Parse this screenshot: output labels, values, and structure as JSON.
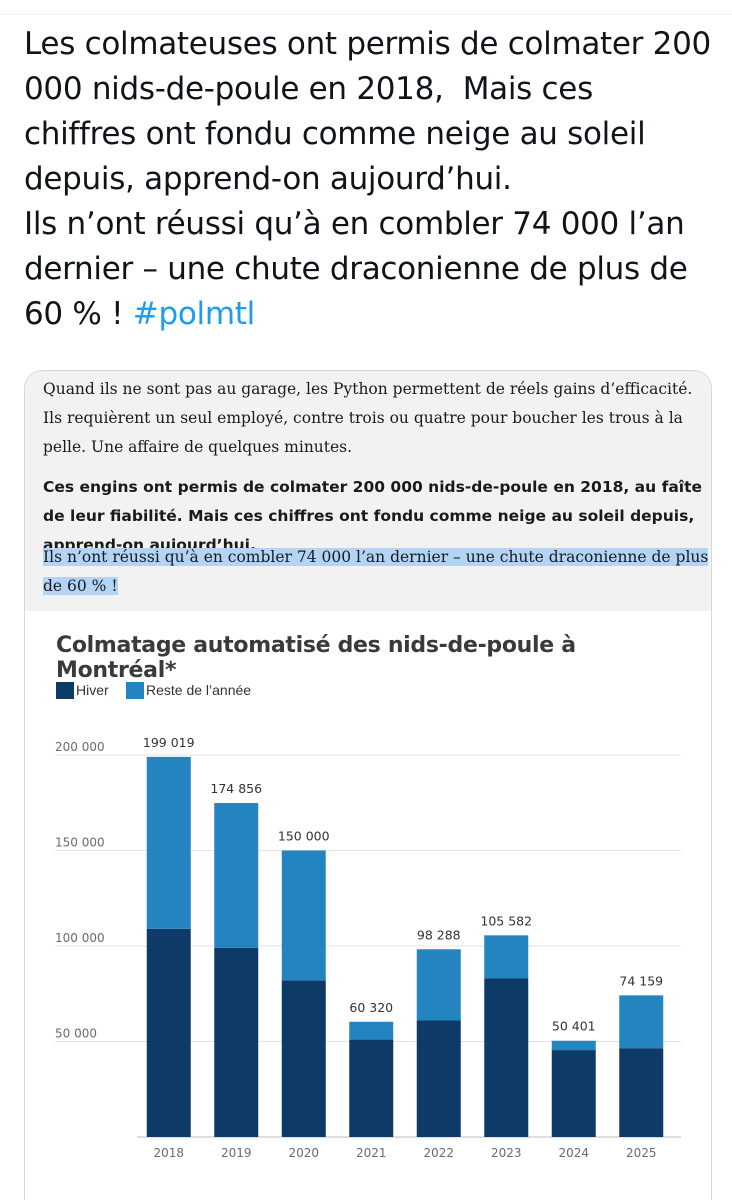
{
  "tweet": {
    "text": "Les colmateuses ont permis de colmater 200 000 nids-de-poule en 2018,  Mais ces chiffres ont fondu comme neige au soleil depuis, apprend-on aujourd’hui.\nIls n’ont réussi qu’à en combler 74 000 l’an dernier – une chute draconienne de plus de 60 % ! ",
    "hashtag": "#polmtl"
  },
  "article": {
    "paragraph_1": "Quand ils ne sont pas au garage, les Python permettent de réels gains d’efficacité. Ils requièrent un seul employé, contre trois ou quatre pour boucher les trous à la pelle. Une affaire de quelques minutes.",
    "paragraph_2": "Ces engins ont permis de colmater 200 000 nids-de-poule en 2018, au faîte de leur fiabilité. Mais ces chiffres ont fondu comme neige au soleil depuis, apprend-on aujourd’hui.",
    "paragraph_3": "Ils n’ont réussi qu’à en combler 74 000 l’an dernier – une chute draconienne de plus de 60 % !"
  },
  "colors": {
    "hiver": "#0d3a66",
    "reste": "#2384c0",
    "hashtag": "#1d9bf0",
    "highlight": "#b3d4f5"
  },
  "chart_data": {
    "type": "bar",
    "stacked": true,
    "title": "Colmatage automatisé des nids-de-poule à Montréal*",
    "legend_position": "top-left",
    "categories": [
      "2018",
      "2019",
      "2020",
      "2021",
      "2022",
      "2023",
      "2024",
      "2025"
    ],
    "series": [
      {
        "name": "Hiver",
        "values": [
          109000,
          99000,
          82000,
          51000,
          61000,
          83000,
          45500,
          46500
        ]
      },
      {
        "name": "Reste de l’année",
        "values": [
          90019,
          75856,
          68000,
          9320,
          37288,
          22582,
          4901,
          27659
        ]
      }
    ],
    "totals": [
      199019,
      174856,
      150000,
      60320,
      98288,
      105582,
      50401,
      74159
    ],
    "total_labels": [
      "199 019",
      "174 856",
      "150 000",
      "60 320",
      "98 288",
      "105 582",
      "50 401",
      "74 159"
    ],
    "yticks": [
      50000,
      100000,
      150000,
      200000
    ],
    "ytick_labels": [
      "50 000",
      "100 000",
      "150 000",
      "200 000"
    ],
    "ylim": [
      0,
      210000
    ],
    "grid": true
  }
}
